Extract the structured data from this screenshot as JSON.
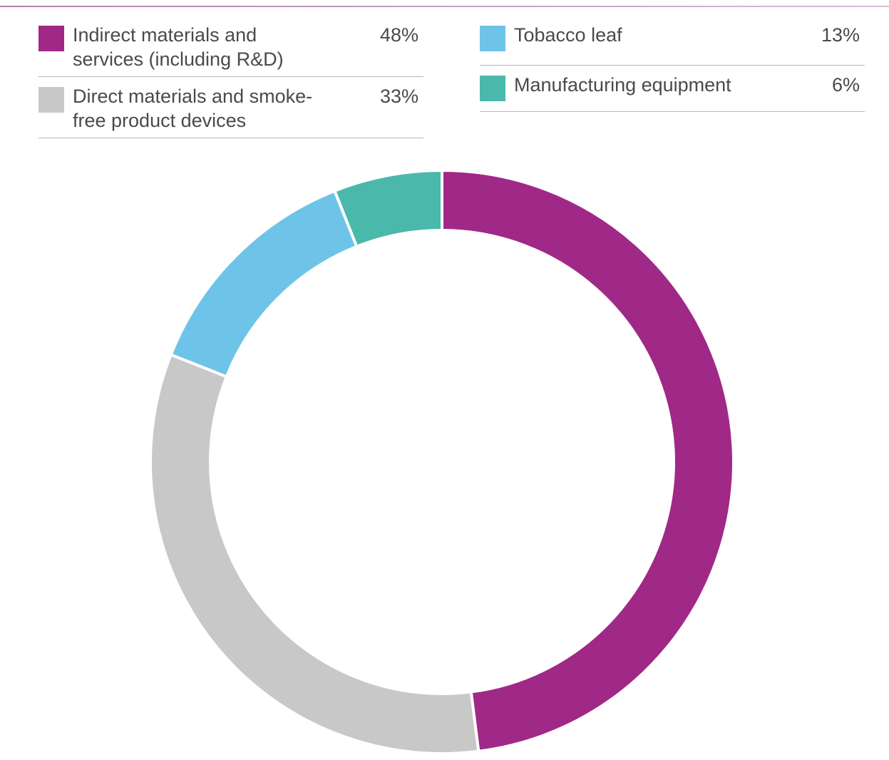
{
  "chart_data": {
    "type": "donut",
    "series": [
      {
        "name": "Indirect materials and services (including R&D)",
        "color": "#a02886",
        "value": 48,
        "value_label": "48%"
      },
      {
        "name": "Direct materials and smoke-free product devices",
        "color": "#c9c8c9",
        "value": 33,
        "value_label": "33%"
      },
      {
        "name": "Tobacco leaf",
        "color": "#6dc4e8",
        "value": 13,
        "value_label": "13%"
      },
      {
        "name": "Manufacturing equipment",
        "color": "#4ab8aa",
        "value": 6,
        "value_label": "6%"
      }
    ]
  }
}
